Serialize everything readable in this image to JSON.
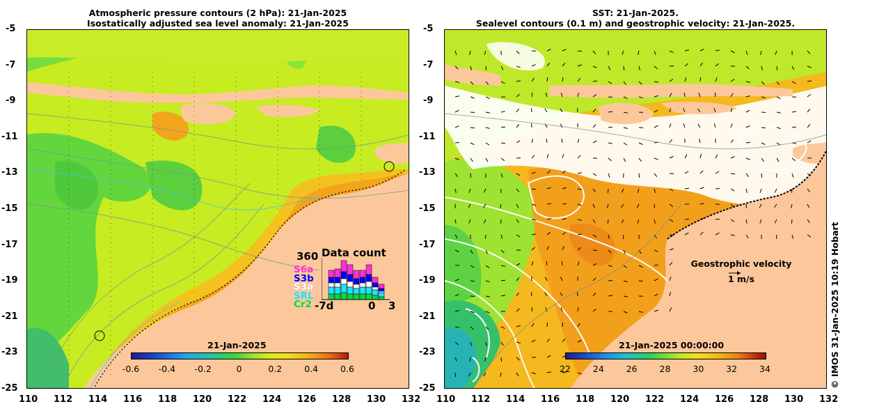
{
  "left_panel": {
    "title_line1": "Atmospheric pressure contours (2 hPa): 21-Jan-2025",
    "title_line2": "Isostatically adjusted sea level anomaly: 21-Jan-2025",
    "colorbar": {
      "date_label": "21-Jan-2025",
      "ticks": [
        "-0.6",
        "-0.4",
        "-0.2",
        "0",
        "0.2",
        "0.4",
        "0.6"
      ],
      "range": [
        -0.6,
        0.6
      ]
    },
    "data_count": {
      "title": "Data count",
      "max_label": "360",
      "satellites": [
        {
          "name": "S6a",
          "color": "#ff2fd8"
        },
        {
          "name": "S3b",
          "color": "#0000ff"
        },
        {
          "name": "S3a",
          "color": "#ffffff"
        },
        {
          "name": "SRL",
          "color": "#19e6ff"
        },
        {
          "name": "Cr2",
          "color": "#00dd44"
        }
      ],
      "axis_labels": [
        "-7d",
        "0",
        "3"
      ]
    }
  },
  "right_panel": {
    "title_line1": "SST: 21-Jan-2025.",
    "title_line2": "Sealevel contours (0.1 m) and geostrophic velocity: 21-Jan-2025.",
    "colorbar": {
      "date_label": "21-Jan-2025 00:00:00",
      "ticks": [
        "22",
        "24",
        "26",
        "28",
        "30",
        "32",
        "34"
      ],
      "range": [
        22,
        34
      ]
    },
    "velocity_legend": {
      "title": "Geostrophic velocity",
      "scale": "1 m/s"
    }
  },
  "axes": {
    "y_ticks": [
      "-5",
      "-7",
      "-9",
      "-11",
      "-13",
      "-15",
      "-17",
      "-19",
      "-21",
      "-23",
      "-25"
    ],
    "x_ticks": [
      "110",
      "112",
      "114",
      "116",
      "118",
      "120",
      "122",
      "124",
      "126",
      "128",
      "130",
      "132"
    ]
  },
  "credit": "© IMOS 31-Jan-2025 10:19 Hobart",
  "colors": {
    "land": "#fcc89b",
    "ocean_green": "#6fe23a",
    "ocean_yellow": "#d8f21e",
    "ocean_orange": "#f5a81e"
  }
}
